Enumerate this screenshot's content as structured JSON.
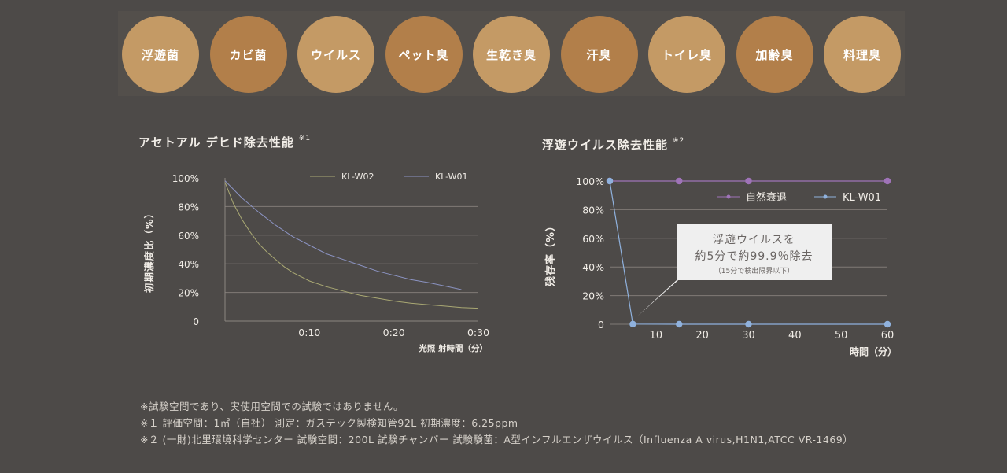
{
  "badges": [
    {
      "label": "浮遊菌",
      "color": "#c49a65"
    },
    {
      "label": "カビ菌",
      "color": "#b27f4a"
    },
    {
      "label": "ウイルス",
      "color": "#c49a65"
    },
    {
      "label": "ペット臭",
      "color": "#b27f4a"
    },
    {
      "label": "生乾き臭",
      "color": "#c49a65"
    },
    {
      "label": "汗臭",
      "color": "#b27f4a"
    },
    {
      "label": "トイレ臭",
      "color": "#c49a65"
    },
    {
      "label": "加齢臭",
      "color": "#b27f4a"
    },
    {
      "label": "料理臭",
      "color": "#c49a65"
    }
  ],
  "chart_data": [
    {
      "type": "line",
      "title": "アセトアル デヒド除去性能",
      "title_note": "※1",
      "xlabel": "光照 射時間（分）",
      "ylabel": "初期濃度比（%）",
      "x_ticks": [
        "0:10",
        "0:20",
        "0:30"
      ],
      "y_ticks": [
        "0",
        "20%",
        "40%",
        "60%",
        "80%",
        "100%"
      ],
      "xlim": [
        0,
        30
      ],
      "ylim": [
        0,
        100
      ],
      "grid": true,
      "legend_position": "top-right",
      "series": [
        {
          "name": "KL-W02",
          "color": "#a9a873",
          "x": [
            0,
            1,
            2,
            3,
            4,
            5,
            6,
            7,
            8,
            9,
            10,
            12,
            14,
            16,
            18,
            20,
            22,
            24,
            26,
            28,
            30
          ],
          "y": [
            97,
            82,
            71,
            62,
            54,
            48,
            43,
            38,
            34,
            31,
            28,
            24,
            21,
            18,
            16,
            14,
            12.5,
            11.5,
            10.5,
            9.5,
            9
          ]
        },
        {
          "name": "KL-W01",
          "color": "#8b93c2",
          "x": [
            0,
            2,
            4,
            6,
            8,
            10,
            12,
            14,
            16,
            18,
            20,
            22,
            24,
            26,
            28
          ],
          "y": [
            98,
            86,
            76,
            67,
            59,
            53,
            47,
            43,
            39,
            35,
            32,
            29,
            27,
            24.5,
            22
          ]
        }
      ]
    },
    {
      "type": "line",
      "title": "浮遊ウイルス除去性能",
      "title_note": "※2",
      "xlabel": "時間（分）",
      "ylabel": "残存率（%）",
      "x_ticks": [
        "10",
        "20",
        "30",
        "40",
        "50",
        "60"
      ],
      "y_ticks": [
        "0",
        "20%",
        "40%",
        "60%",
        "80%",
        "100%"
      ],
      "xlim": [
        0,
        60
      ],
      "ylim": [
        0,
        100
      ],
      "grid": true,
      "legend_position": "top-right",
      "series": [
        {
          "name": "自然衰退",
          "color": "#9f73b8",
          "x": [
            0,
            15,
            30,
            60
          ],
          "y": [
            100,
            100,
            100,
            100
          ]
        },
        {
          "name": "KL-W01",
          "color": "#8fb1dd",
          "x": [
            0,
            5,
            15,
            30,
            60
          ],
          "y": [
            100,
            0.1,
            0,
            0,
            0
          ]
        }
      ],
      "annotation": {
        "line1": "浮遊ウイルスを",
        "line2": "約5分で約99.9％除去",
        "line3": "（15分で検出限界以下）"
      }
    }
  ],
  "notes": [
    "※試験空間であり、実使用空間での試験ではありません。",
    "※１ 評価空間：1㎥（自社） 測定：ガステック製検知管92L 初期濃度：6.25ppm",
    "※２ (一財)北里環境科学センター 試験空間：200L 試験チャンバー 試験験菌：A型インフルエンザウイルス（Influenza A virus,H1N1,ATCC VR-1469）"
  ]
}
